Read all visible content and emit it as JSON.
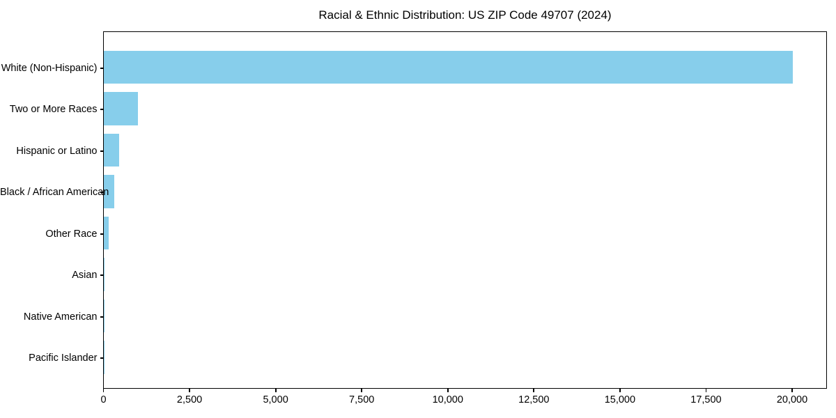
{
  "chart_data": {
    "type": "bar",
    "orientation": "horizontal",
    "title": "Racial & Ethnic Distribution: US ZIP Code 49707 (2024)",
    "categories": [
      "White (Non-Hispanic)",
      "Two or More Races",
      "Hispanic or Latino",
      "Black / African American",
      "Other Race",
      "Asian",
      "Native American",
      "Pacific Islander"
    ],
    "values": [
      20000,
      1000,
      450,
      300,
      150,
      20,
      10,
      5
    ],
    "xlabel": "",
    "ylabel": "",
    "xlim": [
      0,
      21000
    ],
    "x_ticks": [
      0,
      2500,
      5000,
      7500,
      10000,
      12500,
      15000,
      17500,
      20000
    ],
    "x_tick_labels": [
      "0",
      "2,500",
      "5,000",
      "7,500",
      "10,000",
      "12,500",
      "15,000",
      "17,500",
      "20,000"
    ],
    "bar_color": "#87CEEB",
    "axis_color": "#000000",
    "background_color": "#ffffff",
    "grid": false,
    "legend": null
  }
}
